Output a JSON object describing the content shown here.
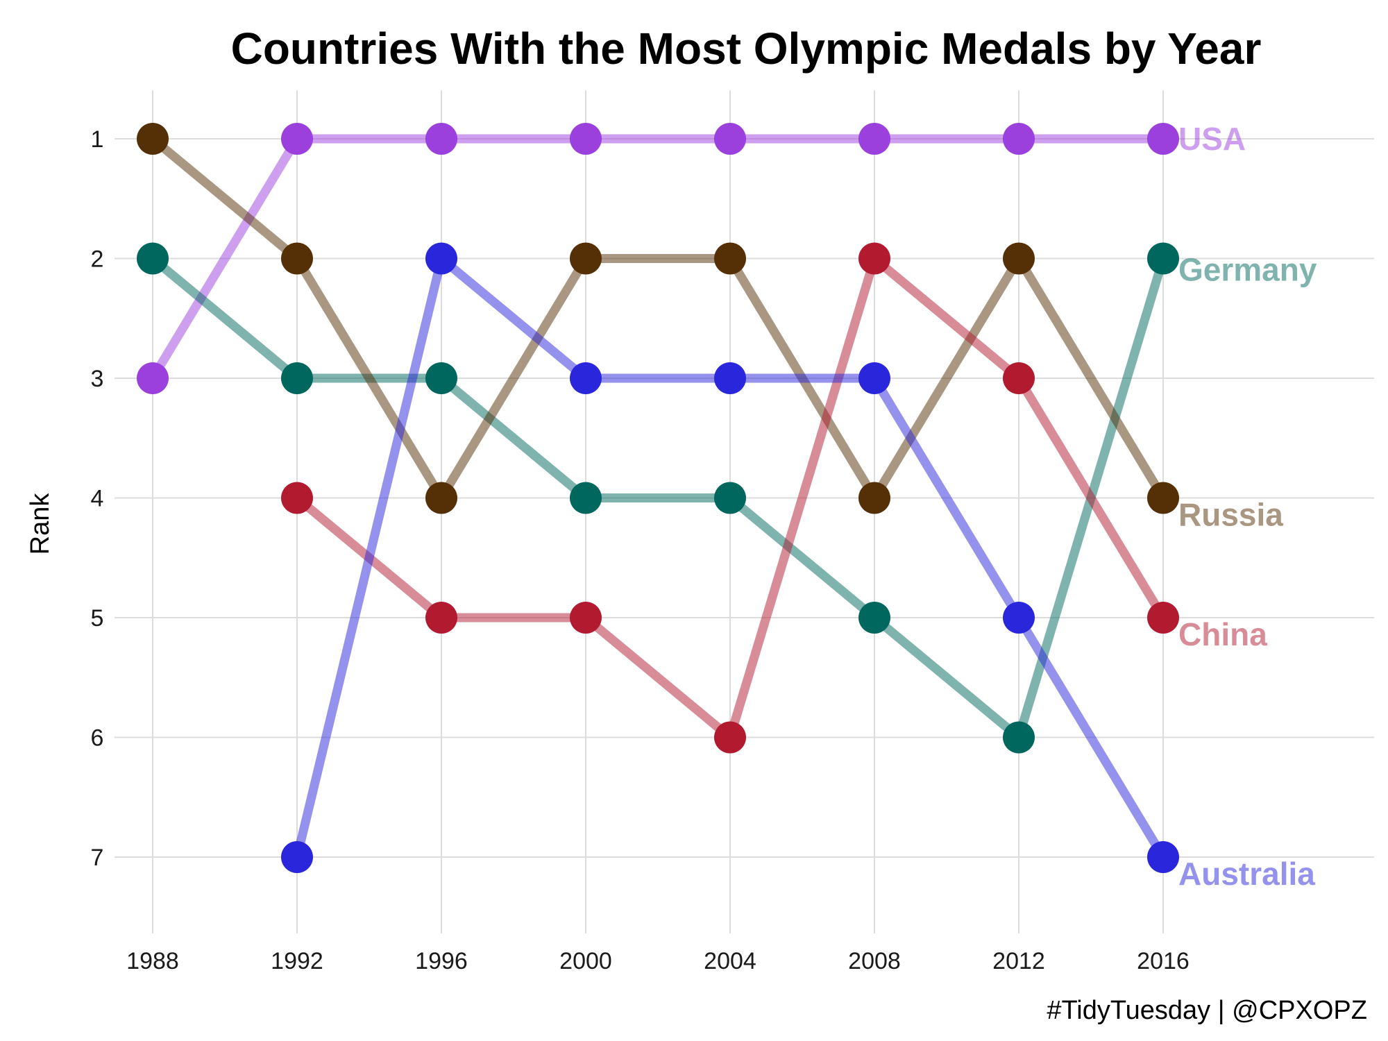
{
  "chart_data": {
    "type": "line",
    "title": "Countries With the Most Olympic Medals by Year",
    "xlabel": "",
    "ylabel": "Rank",
    "x": [
      1988,
      1992,
      1996,
      2000,
      2004,
      2008,
      2012,
      2016
    ],
    "ylim": [
      7,
      1
    ],
    "y_reversed": true,
    "grid": true,
    "legend": "direct labels at line ends",
    "series": [
      {
        "name": "USA",
        "color": "#9b3fdd",
        "values": [
          3,
          1,
          1,
          1,
          1,
          1,
          1,
          1
        ]
      },
      {
        "name": "Germany",
        "color": "#00675e",
        "values": [
          2,
          3,
          3,
          4,
          4,
          5,
          6,
          2
        ]
      },
      {
        "name": "Russia",
        "color": "#553006",
        "values": [
          1,
          2,
          4,
          2,
          2,
          4,
          2,
          4
        ]
      },
      {
        "name": "China",
        "color": "#b21a30",
        "values": [
          null,
          4,
          5,
          5,
          6,
          2,
          3,
          5
        ]
      },
      {
        "name": "Australia",
        "color": "#2a26dc",
        "values": [
          null,
          7,
          2,
          3,
          3,
          3,
          5,
          7
        ]
      }
    ],
    "caption": "#TidyTuesday | @CPXOPZ"
  }
}
